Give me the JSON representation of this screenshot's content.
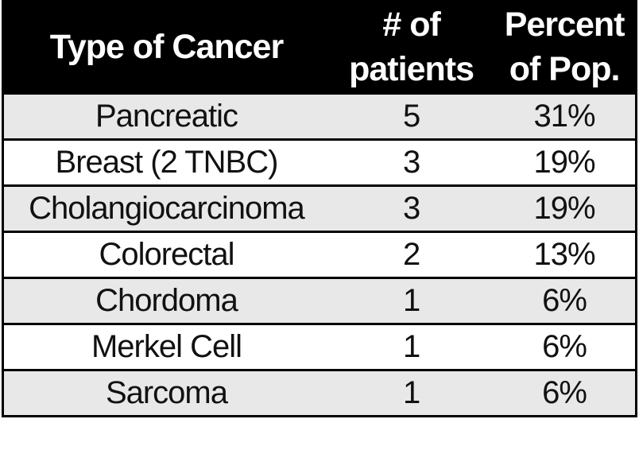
{
  "header": {
    "cols": [
      {
        "label": "Type of Cancer"
      },
      {
        "label": "# of\npatients"
      },
      {
        "label": "Percent\nof Pop."
      }
    ]
  },
  "chart_data": {
    "type": "table",
    "title": "",
    "columns": [
      "Type of Cancer",
      "# of patients",
      "Percent of Pop."
    ],
    "rows": [
      [
        "Pancreatic",
        5,
        "31%"
      ],
      [
        "Breast (2 TNBC)",
        3,
        "19%"
      ],
      [
        "Cholangiocarcinoma",
        3,
        "19%"
      ],
      [
        "Colorectal",
        2,
        "13%"
      ],
      [
        "Chordoma",
        1,
        "6%"
      ],
      [
        "Merkel Cell",
        1,
        "6%"
      ],
      [
        "Sarcoma",
        1,
        "6%"
      ]
    ]
  },
  "colors": {
    "header_bg": "#000000",
    "header_text": "#ffffff",
    "row_alt_bg": "#e8e8e8",
    "row_bg": "#ffffff",
    "border": "#000000",
    "body_text": "#111111"
  }
}
